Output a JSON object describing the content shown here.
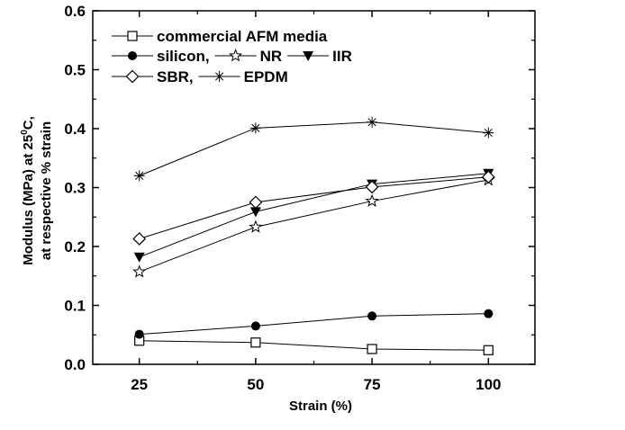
{
  "chart_data": {
    "type": "line",
    "title": "",
    "xlabel": "Strain (%)",
    "ylabel_line1": "Modulus (MPa) at 25",
    "ylabel_sup": "0",
    "ylabel_line1_suffix": "C,",
    "ylabel_line2": "at respective % strain",
    "x": [
      25,
      50,
      75,
      100
    ],
    "xlim": [
      15,
      110
    ],
    "ylim": [
      0.0,
      0.6
    ],
    "xticks": [
      "25",
      "50",
      "75",
      "100"
    ],
    "yticks": [
      "0.0",
      "0.1",
      "0.2",
      "0.3",
      "0.4",
      "0.5",
      "0.6"
    ],
    "grid": false,
    "legend_position": "top-left",
    "series": [
      {
        "name": "commercial AFM media",
        "marker": "square-open",
        "values": [
          0.04,
          0.037,
          0.026,
          0.024
        ]
      },
      {
        "name": "silicon,",
        "marker": "circle-filled",
        "values": [
          0.051,
          0.065,
          0.082,
          0.086
        ]
      },
      {
        "name": "NR",
        "marker": "star-open",
        "values": [
          0.157,
          0.233,
          0.277,
          0.313
        ]
      },
      {
        "name": "IIR",
        "marker": "triangle-down-filled",
        "values": [
          0.182,
          0.259,
          0.306,
          0.324
        ]
      },
      {
        "name": "SBR,",
        "marker": "diamond-open",
        "values": [
          0.213,
          0.275,
          0.301,
          0.318
        ]
      },
      {
        "name": "EPDM",
        "marker": "asterisk",
        "values": [
          0.32,
          0.401,
          0.411,
          0.393
        ]
      }
    ],
    "colors": {
      "line": "#000000",
      "background": "#ffffff"
    }
  }
}
